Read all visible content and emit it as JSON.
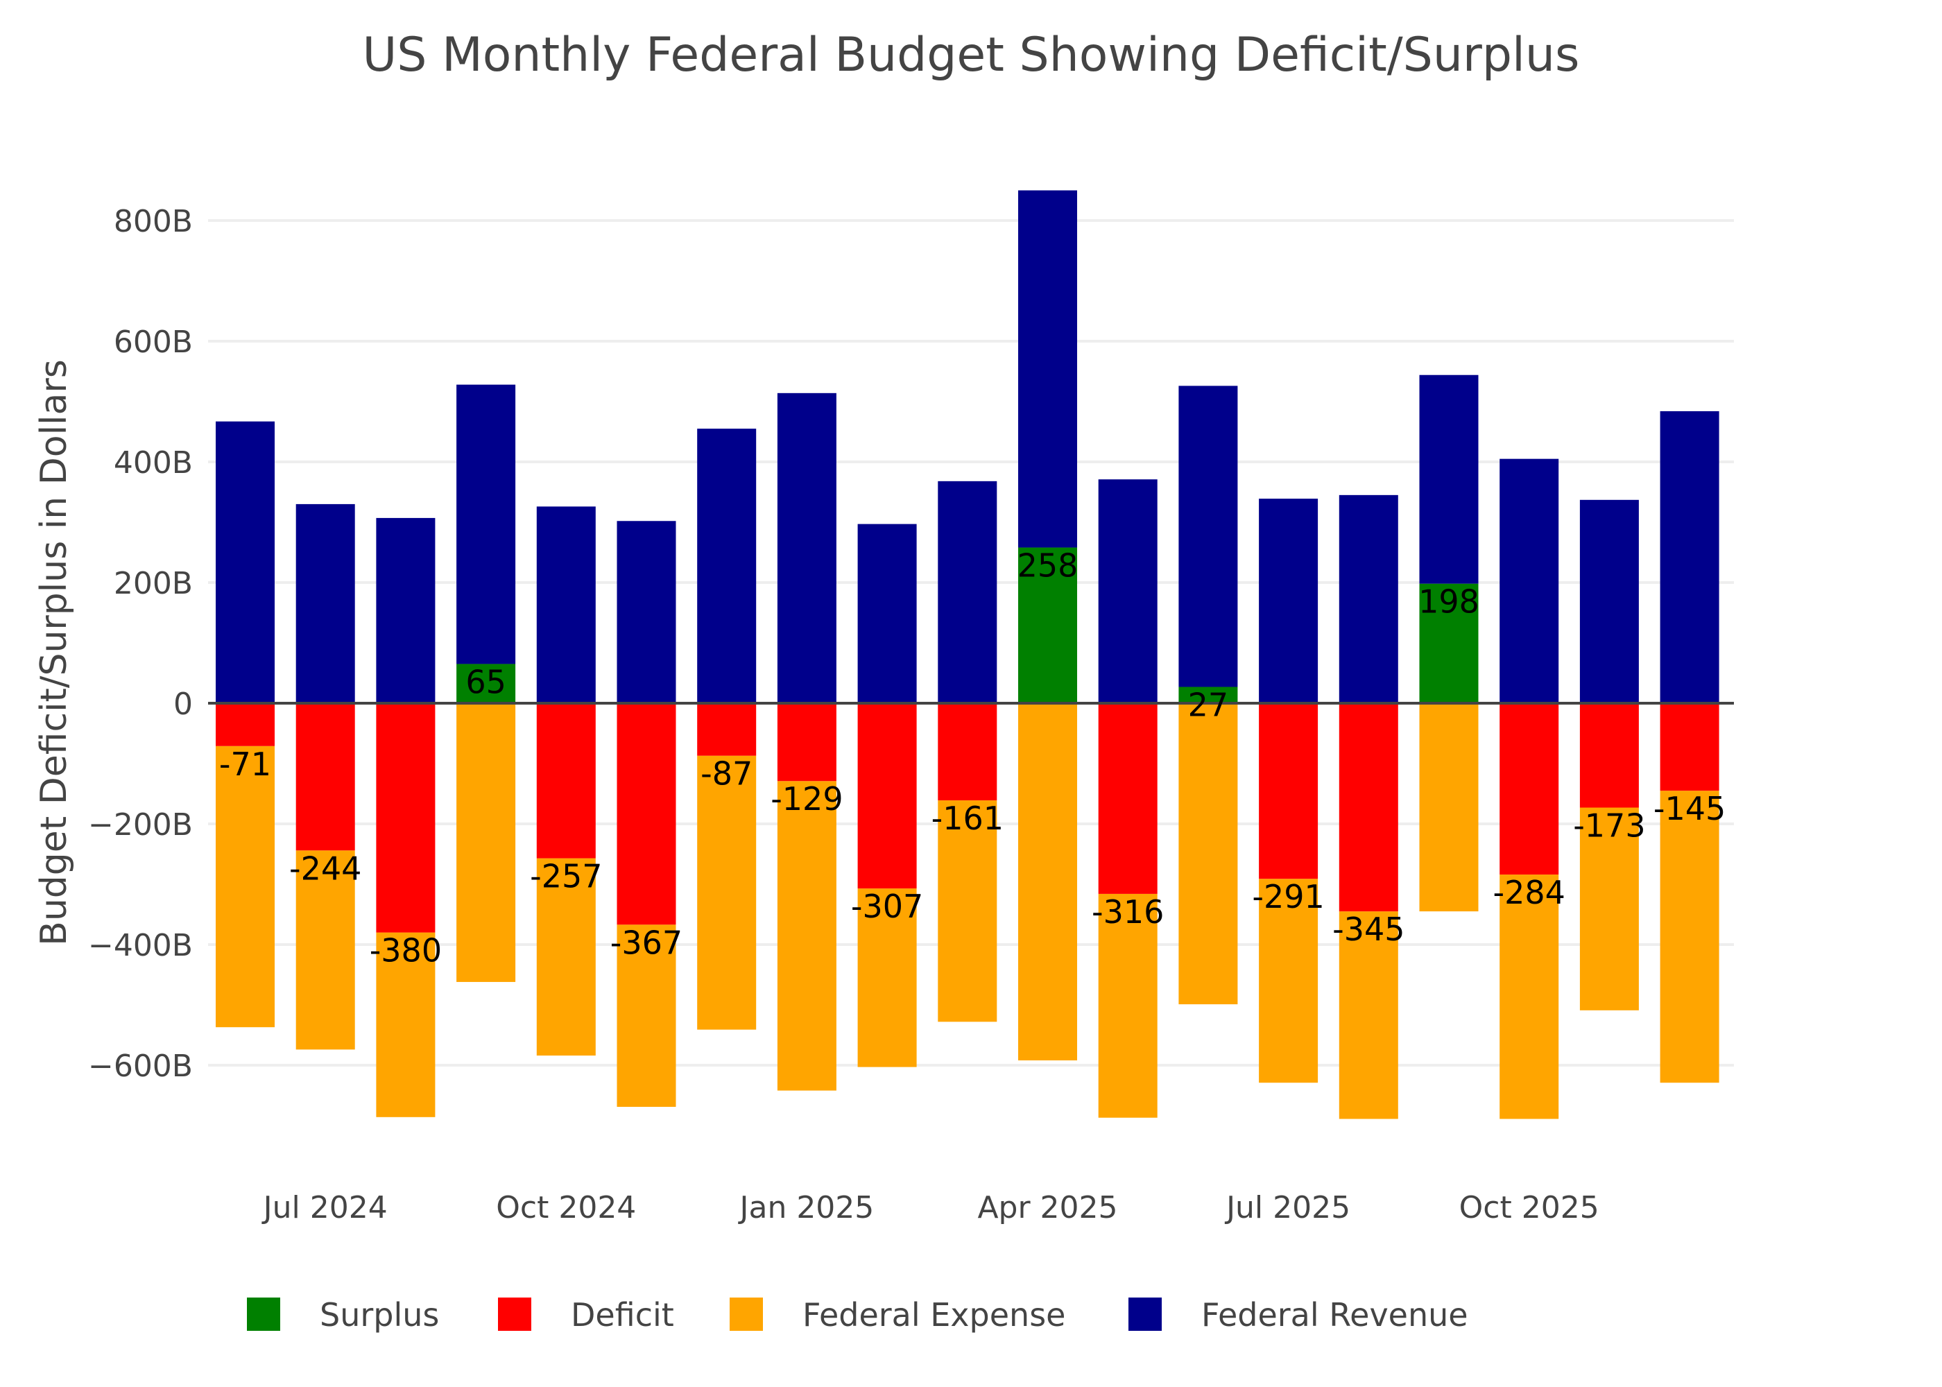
{
  "chart_data": {
    "type": "bar",
    "barmode": "relative",
    "title": "US Monthly Federal Budget Showing Deficit/Surplus",
    "xlabel": "",
    "ylabel": "Budget Deficit/Surplus in Dollars",
    "ylim": [
      -760,
      880
    ],
    "grid": true,
    "legend_position": "bottom",
    "categories": [
      "Jun 2024",
      "Jul 2024",
      "Aug 2024",
      "Sep 2024",
      "Oct 2024",
      "Nov 2024",
      "Dec 2024",
      "Jan 2025",
      "Feb 2025",
      "Mar 2025",
      "Apr 2025",
      "May 2025",
      "Jun 2025",
      "Jul 2025",
      "Aug 2025",
      "Sep 2025",
      "Oct 2025",
      "Nov 2025",
      "Dec 2025"
    ],
    "x_tick_labels": [
      {
        "label": "Jul 2024",
        "category": "Jul 2024"
      },
      {
        "label": "Oct 2024",
        "category": "Oct 2024"
      },
      {
        "label": "Jan 2025",
        "category": "Jan 2025"
      },
      {
        "label": "Apr 2025",
        "category": "Apr 2025"
      },
      {
        "label": "Jul 2025",
        "category": "Jul 2025"
      },
      {
        "label": "Oct 2025",
        "category": "Oct 2025"
      }
    ],
    "y_ticks": [
      {
        "value": 800,
        "label": "800B"
      },
      {
        "value": 600,
        "label": "600B"
      },
      {
        "value": 400,
        "label": "400B"
      },
      {
        "value": 200,
        "label": "200B"
      },
      {
        "value": 0,
        "label": "0"
      },
      {
        "value": -200,
        "label": "−200B"
      },
      {
        "value": -400,
        "label": "−400B"
      },
      {
        "value": -600,
        "label": "−600B"
      }
    ],
    "units": "billions USD",
    "series": [
      {
        "name": "Surplus",
        "color": "#008000",
        "values": [
          0,
          0,
          0,
          65,
          0,
          0,
          0,
          0,
          0,
          0,
          258,
          0,
          27,
          0,
          0,
          198,
          0,
          0,
          0
        ]
      },
      {
        "name": "Deficit",
        "color": "#ff0000",
        "values": [
          -71,
          -244,
          -380,
          0,
          -257,
          -367,
          -87,
          -129,
          -307,
          -161,
          0,
          -316,
          0,
          -291,
          -345,
          0,
          -284,
          -173,
          -145
        ]
      },
      {
        "name": "Federal Expense",
        "color": "#ffa500",
        "values": [
          -537,
          -574,
          -686,
          -462,
          -584,
          -669,
          -541,
          -642,
          -603,
          -528,
          -592,
          -687,
          -499,
          -629,
          -689,
          -345,
          -689,
          -509,
          -629
        ]
      },
      {
        "name": "Federal Revenue",
        "color": "#00008b",
        "values": [
          467,
          330,
          307,
          528,
          326,
          302,
          455,
          514,
          297,
          368,
          850,
          371,
          526,
          339,
          345,
          544,
          405,
          337,
          484
        ]
      }
    ],
    "data_labels": [
      "-71",
      "-244",
      "-380",
      "65",
      "-257",
      "-367",
      "-87",
      "-129",
      "-307",
      "-161",
      "258",
      "-316",
      "27",
      "-291",
      "-345",
      "198",
      "-284",
      "-173",
      "-145"
    ]
  },
  "legend": {
    "items": [
      {
        "label": "Surplus",
        "color": "#008000"
      },
      {
        "label": "Deficit",
        "color": "#ff0000"
      },
      {
        "label": "Federal Expense",
        "color": "#ffa500"
      },
      {
        "label": "Federal Revenue",
        "color": "#00008b"
      }
    ]
  }
}
